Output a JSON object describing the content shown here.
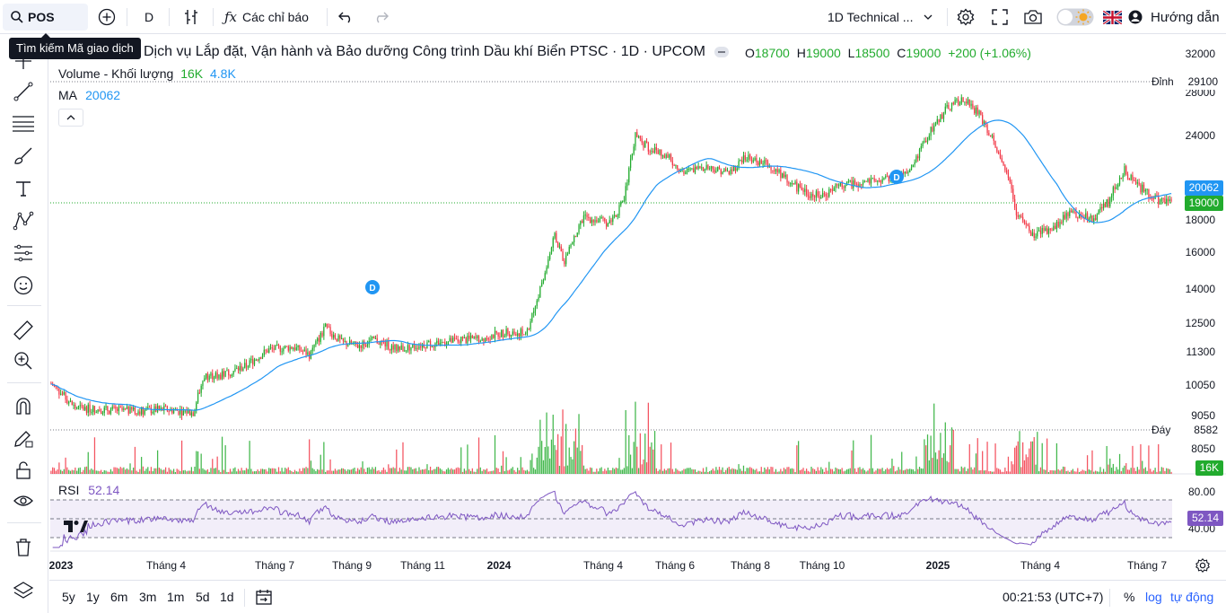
{
  "topbar": {
    "symbol": "POS",
    "interval": "D",
    "indicators_label": "Các chỉ báo",
    "layout_name": "1D Technical ...",
    "guide_label": "Hướng dẫn"
  },
  "tooltip": "Tìm kiếm Mã giao dịch",
  "legend": {
    "title": "Dịch vụ Lắp đặt, Vận hành và Bảo dưỡng Công trình Dầu khí Biển PTSC · 1D · UPCOM",
    "o_label": "O",
    "o_val": "18700",
    "h_label": "H",
    "h_val": "19000",
    "l_label": "L",
    "l_val": "18500",
    "c_label": "C",
    "c_val": "19000",
    "change": "+200 (+1.06%)",
    "volume_label": "Volume - Khối lượng",
    "volume_val1": "16K",
    "volume_val2": "4.8K",
    "ma_label": "MA",
    "ma_val": "20062"
  },
  "price_axis": [
    "32000",
    "28000",
    "24000",
    "20000",
    "18000",
    "16000",
    "14000",
    "12500",
    "11300",
    "10050",
    "9050",
    "8050"
  ],
  "price_marks": {
    "peak_label": "Đỉnh",
    "peak_val": "29100",
    "bottom_label": "Đáy",
    "bottom_val": "8582",
    "ma_tag": "20062",
    "last_tag": "19000",
    "volume_tag": "16K"
  },
  "rsi": {
    "label": "RSI",
    "value": "52.14",
    "axis_top": "80.00",
    "axis_bottom": "40.00",
    "tag": "52.14"
  },
  "dividend_marker": "D",
  "time_axis": [
    {
      "label": "2023",
      "year": true
    },
    {
      "label": "Tháng 4",
      "year": false
    },
    {
      "label": "Tháng 7",
      "year": false
    },
    {
      "label": "Tháng 9",
      "year": false
    },
    {
      "label": "Tháng 11",
      "year": false
    },
    {
      "label": "2024",
      "year": true
    },
    {
      "label": "Tháng 4",
      "year": false
    },
    {
      "label": "Tháng 6",
      "year": false
    },
    {
      "label": "Tháng 8",
      "year": false
    },
    {
      "label": "Tháng 10",
      "year": false
    },
    {
      "label": "2025",
      "year": true
    },
    {
      "label": "Tháng 4",
      "year": false
    },
    {
      "label": "Tháng 7",
      "year": false
    }
  ],
  "bottombar": {
    "ranges": [
      "5y",
      "1y",
      "6m",
      "3m",
      "1m",
      "5d",
      "1d"
    ],
    "clock": "00:21:53 (UTC+7)",
    "percent": "%",
    "log": "log",
    "auto": "tự động"
  },
  "colors": {
    "up": "#089981",
    "down": "#f23645",
    "ma": "#2196f3",
    "rsi": "#7e57c2",
    "green_bar": "#22ab2e"
  }
}
